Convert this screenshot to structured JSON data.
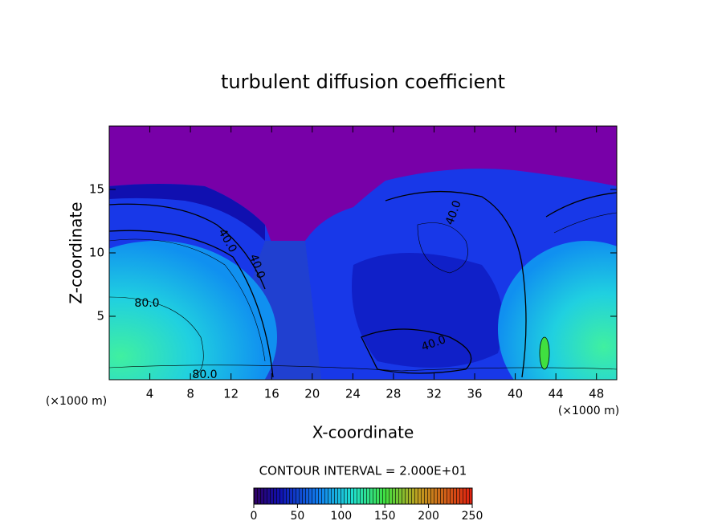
{
  "chart_data": {
    "type": "contour",
    "title": "turbulent diffusion coefficient",
    "x_label": "X-coordinate",
    "y_label": "Z-coordinate",
    "unit_labels": [
      "(×1000 m)",
      "(×1000 m)"
    ],
    "xlim": [
      0,
      50
    ],
    "xticks": [
      4,
      8,
      12,
      16,
      20,
      24,
      28,
      32,
      36,
      40,
      44,
      48
    ],
    "ylim": [
      0,
      20
    ],
    "yticks": [
      5,
      10,
      15
    ],
    "contour_labels": [
      "80.0",
      "40.0",
      "40.0",
      "40.0",
      "40.0",
      "80.0"
    ],
    "contour_interval_label": "CONTOUR INTERVAL = 2.000E+01",
    "colorbar": {
      "lim": [
        0,
        250
      ],
      "ticks": [
        0,
        50,
        100,
        150,
        200,
        250
      ]
    }
  }
}
